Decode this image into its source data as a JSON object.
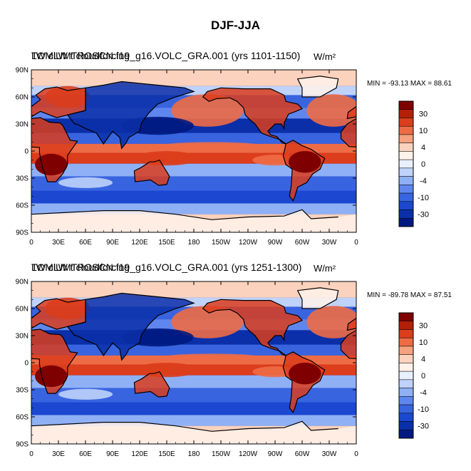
{
  "figure": {
    "title": "DJF-JJA",
    "colors": {
      "ocean_deep_blue": "#1538c7",
      "land_red": "#c4361c",
      "palette": [
        "#001a80",
        "#0a2fa8",
        "#1c47d0",
        "#3964e0",
        "#5f86ee",
        "#8fb0f5",
        "#bfd2fa",
        "#e8f0ff",
        "#fff2ea",
        "#fbd2bd",
        "#f4a27f",
        "#ee6c45",
        "#dc3d1c",
        "#b41f0a",
        "#7f0000"
      ]
    }
  },
  "chart_data": [
    {
      "type": "heatmap",
      "title": "TOMLW t cloudforcing",
      "title_overlay": "LW clUMTROSCN.f19_g16.VOLC_GRA.001 (yrs 1101-1150)",
      "units": "W/m²",
      "min": -93.13,
      "max": 88.61,
      "stats_label": "MIN = -93.13 MAX =  88.61",
      "xticks": [
        "0",
        "30E",
        "60E",
        "90E",
        "120E",
        "150E",
        "180",
        "150W",
        "120W",
        "90W",
        "60W",
        "30W",
        "0"
      ],
      "yticks": [
        "90N",
        "60N",
        "30N",
        "0",
        "30S",
        "60S",
        "90S"
      ],
      "xlim": [
        0,
        360
      ],
      "ylim": [
        -90,
        90
      ],
      "colorbar_labels": [
        "30",
        "10",
        "4",
        "0",
        "-4",
        "-10",
        "-30"
      ],
      "colorbar_levels": 15
    },
    {
      "type": "heatmap",
      "title": "TOMLW t cloudforcing",
      "title_overlay": "LW clUMTROSCN.f19_g16.VOLC_GRA.001 (yrs 1251-1300)",
      "units": "W/m²",
      "min": -89.78,
      "max": 87.51,
      "stats_label": "MIN = -89.78 MAX =  87.51",
      "xticks": [
        "0",
        "30E",
        "60E",
        "90E",
        "120E",
        "150E",
        "180",
        "150W",
        "120W",
        "90W",
        "60W",
        "30W",
        "0"
      ],
      "yticks": [
        "90N",
        "60N",
        "30N",
        "0",
        "30S",
        "60S",
        "90S"
      ],
      "xlim": [
        0,
        360
      ],
      "ylim": [
        -90,
        90
      ],
      "colorbar_labels": [
        "30",
        "10",
        "4",
        "0",
        "-4",
        "-10",
        "-30"
      ],
      "colorbar_levels": 15
    }
  ]
}
